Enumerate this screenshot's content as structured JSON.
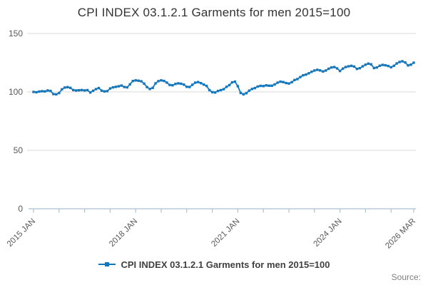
{
  "title": "CPI INDEX 03.1.2.1 Garments for men 2015=100",
  "legend": {
    "label": "CPI INDEX 03.1.2.1 Garments for men 2015=100"
  },
  "source": {
    "label": "Source:"
  },
  "chart_data": {
    "type": "line",
    "title": "CPI INDEX 03.1.2.1 Garments for men 2015=100",
    "series_name": "CPI INDEX 03.1.2.1 Garments for men 2015=100",
    "x_unit": "month",
    "x_range": [
      "2015 JAN",
      "2026 MAR"
    ],
    "ylim": [
      0,
      150
    ],
    "yticks": [
      0,
      50,
      100,
      150
    ],
    "grid": true,
    "legend_position": "bottom",
    "line_color": "#1577bb",
    "grid_color": "#d9d9d9",
    "axis_color": "#aebfd6",
    "tick_label_color": "#595959",
    "x_tick_months": [
      0,
      9,
      18,
      27,
      36,
      45,
      54,
      63,
      72,
      81,
      90,
      99,
      108,
      117,
      126,
      134
    ],
    "x_tick_labels": [
      {
        "month": 0,
        "label": "2015 JAN"
      },
      {
        "month": 36,
        "label": "2018 JAN"
      },
      {
        "month": 72,
        "label": "2021 JAN"
      },
      {
        "month": 108,
        "label": "2024 JAN"
      },
      {
        "month": 134,
        "label": "2026 MAR"
      }
    ],
    "values": [
      100.0,
      99.7,
      100.3,
      100.6,
      100.4,
      101.2,
      100.8,
      98.2,
      97.9,
      99.0,
      102.2,
      103.7,
      104.1,
      103.5,
      101.6,
      101.2,
      101.4,
      101.6,
      101.3,
      101.5,
      99.5,
      101.0,
      102.4,
      103.3,
      101.1,
      100.4,
      100.7,
      102.9,
      103.9,
      104.3,
      104.8,
      105.4,
      104.2,
      103.9,
      106.5,
      109.3,
      109.9,
      109.6,
      109.1,
      107.1,
      104.1,
      102.5,
      103.5,
      107.3,
      109.2,
      109.9,
      109.4,
      108.0,
      106.0,
      105.7,
      106.8,
      107.3,
      107.0,
      106.2,
      104.4,
      104.2,
      106.1,
      107.9,
      108.4,
      107.5,
      106.3,
      105.1,
      101.5,
      99.8,
      99.5,
      100.8,
      101.5,
      102.3,
      104.3,
      105.8,
      108.2,
      108.8,
      104.9,
      99.1,
      97.9,
      98.9,
      101.1,
      102.5,
      103.3,
      104.6,
      105.2,
      105.0,
      105.6,
      105.3,
      105.3,
      106.4,
      107.9,
      108.8,
      108.4,
      107.6,
      107.2,
      108.3,
      110.2,
      111.0,
      112.7,
      114.2,
      114.8,
      115.9,
      117.2,
      118.3,
      118.9,
      118.4,
      117.5,
      118.3,
      119.8,
      120.9,
      121.3,
      120.1,
      117.9,
      119.9,
      121.3,
      121.9,
      122.3,
      121.7,
      119.7,
      120.3,
      121.9,
      123.3,
      124.2,
      123.6,
      120.4,
      120.9,
      122.4,
      123.1,
      122.8,
      122.2,
      121.1,
      122.3,
      124.3,
      125.6,
      126.2,
      125.2,
      122.7,
      123.3,
      125.0
    ]
  }
}
